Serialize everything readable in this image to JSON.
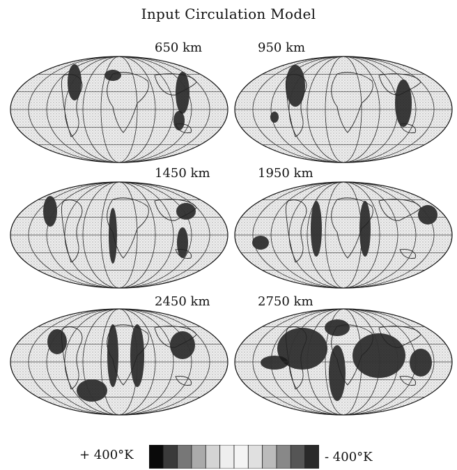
{
  "title": "Input Circulation Model",
  "panels": [
    {
      "depth": "650 km"
    },
    {
      "depth": "950 km"
    },
    {
      "depth": "1450 km"
    },
    {
      "depth": "1950 km"
    },
    {
      "depth": "2450 km"
    },
    {
      "depth": "2750 km"
    }
  ],
  "colorbar": {
    "left_label": "+ 400°K",
    "right_label": "- 400°K",
    "segments": 12,
    "colors": [
      "#000000",
      "#111111",
      "#444444",
      "#888888",
      "#cccccc",
      "#ffffff"
    ]
  }
}
